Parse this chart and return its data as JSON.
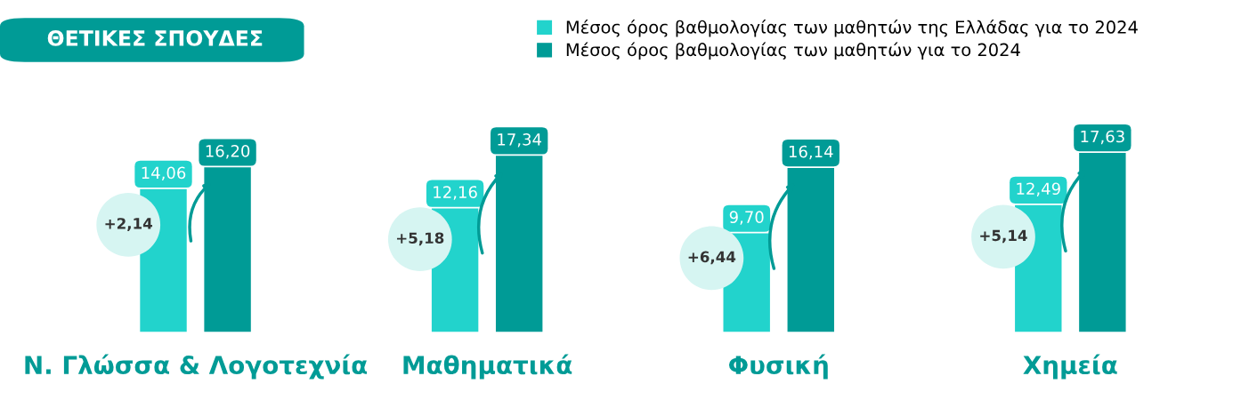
{
  "chart_data": {
    "type": "bar",
    "title": "ΘΕΤΙΚΕΣ ΣΠΟΥΔΕΣ",
    "categories": [
      "Ν. Γλώσσα & Λογοτεχνία",
      "Μαθηματικά",
      "Φυσική",
      "Χημεία"
    ],
    "series": [
      {
        "name": "Μέσος όρος βαθμολογίας των μαθητών της Ελλάδας για το 2024",
        "color": "#22d3cc",
        "values": [
          14.06,
          12.16,
          9.7,
          12.49
        ],
        "value_labels": [
          "14,06",
          "12,16",
          "9,70",
          "12,49"
        ]
      },
      {
        "name": "Μέσος όρος βαθμολογίας των μαθητών για το 2024",
        "color": "#009b96",
        "values": [
          16.2,
          17.34,
          16.14,
          17.63
        ],
        "value_labels": [
          "16,20",
          "17,34",
          "16,14",
          "17,63"
        ]
      }
    ],
    "annotations": [
      "+2,14",
      "+5,18",
      "+6,44",
      "+5,14"
    ],
    "legend": "top right",
    "grid": false
  }
}
